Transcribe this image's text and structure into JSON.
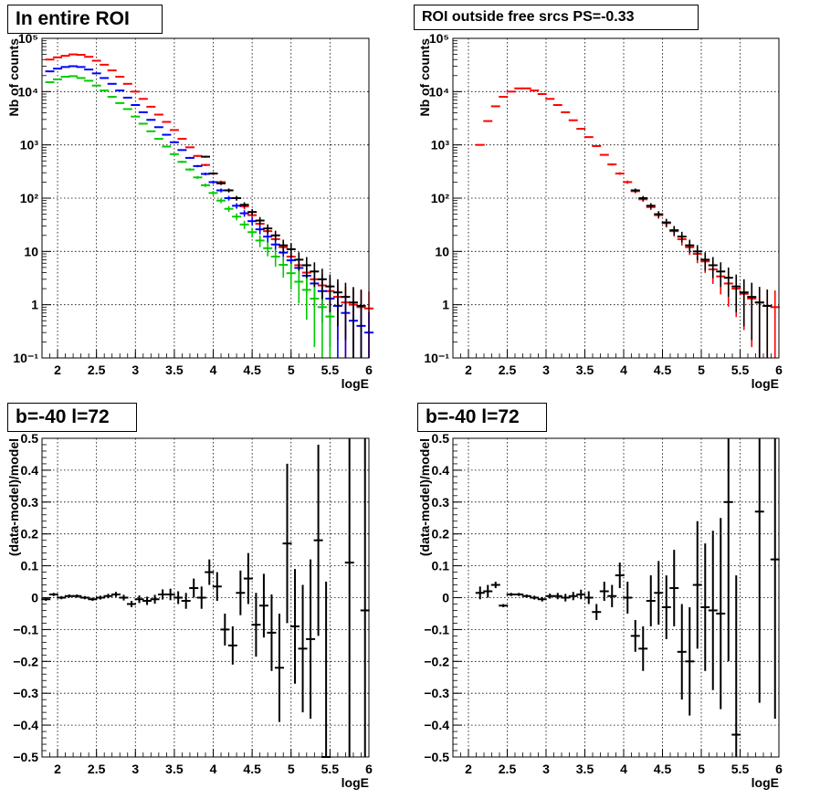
{
  "chart_data": [
    {
      "type": "scatter",
      "title": "In entire ROI",
      "xlabel": "logE",
      "ylabel": "Nb of counts",
      "xlim": [
        1.8,
        6.0
      ],
      "ylim": [
        0.1,
        100000
      ],
      "yscale": "log",
      "grid": true,
      "xticks": [
        "2",
        "2.5",
        "3",
        "3.5",
        "4",
        "4.5",
        "5",
        "5.5",
        "6"
      ],
      "yticks": [
        "10⁻¹",
        "1",
        "10",
        "10²",
        "10³",
        "10⁴",
        "10⁵"
      ],
      "series": [
        {
          "color": "#ff0000",
          "x": [
            1.9,
            2.0,
            2.1,
            2.2,
            2.3,
            2.4,
            2.5,
            2.6,
            2.7,
            2.8,
            2.9,
            3.0,
            3.1,
            3.2,
            3.3,
            3.4,
            3.5,
            3.6,
            3.7,
            3.8,
            3.9,
            4.0,
            4.1,
            4.2,
            4.3,
            4.4,
            4.5,
            4.6,
            4.7,
            4.8,
            4.9,
            5.0,
            5.1,
            5.2,
            5.3,
            5.4,
            5.5,
            5.6,
            5.7,
            5.8,
            5.9,
            6.0
          ],
          "values": [
            40000,
            44000,
            47000,
            50000,
            49000,
            45000,
            38000,
            32000,
            25000,
            19000,
            14000,
            10000,
            7300,
            5200,
            3700,
            2700,
            1900,
            1300,
            900,
            620,
            420,
            290,
            200,
            140,
            100,
            70,
            48,
            33,
            24,
            17,
            12,
            8,
            5.5,
            4,
            3,
            2.3,
            1.8,
            1.4,
            1.1,
            1.0,
            0.9,
            0.85
          ]
        },
        {
          "color": "#0000ff",
          "x": [
            1.9,
            2.0,
            2.1,
            2.2,
            2.3,
            2.4,
            2.5,
            2.6,
            2.7,
            2.8,
            2.9,
            3.0,
            3.1,
            3.2,
            3.3,
            3.4,
            3.5,
            3.6,
            3.7,
            3.8,
            3.9,
            4.0,
            4.1,
            4.2,
            4.3,
            4.4,
            4.5,
            4.6,
            4.7,
            4.8,
            4.9,
            5.0,
            5.1,
            5.2,
            5.3,
            5.4,
            5.5,
            5.6,
            5.7,
            5.8,
            5.9,
            6.0
          ],
          "values": [
            24000,
            27000,
            29000,
            30000,
            29000,
            26000,
            22000,
            18000,
            14000,
            10500,
            7700,
            5600,
            4100,
            2950,
            2150,
            1550,
            1120,
            800,
            570,
            400,
            285,
            200,
            140,
            100,
            72,
            52,
            37,
            26,
            19,
            13.5,
            9.5,
            6.8,
            4.9,
            3.5,
            2.5,
            1.8,
            1.3,
            0.95,
            0.7,
            0.5,
            0.4,
            0.3
          ]
        },
        {
          "color": "#00cc00",
          "x": [
            1.9,
            2.0,
            2.1,
            2.2,
            2.3,
            2.4,
            2.5,
            2.6,
            2.7,
            2.8,
            2.9,
            3.0,
            3.1,
            3.2,
            3.3,
            3.4,
            3.5,
            3.6,
            3.7,
            3.8,
            3.9,
            4.0,
            4.1,
            4.2,
            4.3,
            4.4,
            4.5,
            4.6,
            4.7,
            4.8,
            4.9,
            5.0,
            5.1,
            5.2,
            5.3,
            5.4,
            5.5
          ],
          "values": [
            15000,
            17000,
            19000,
            19500,
            18000,
            16000,
            13000,
            10500,
            8000,
            6100,
            4700,
            3400,
            2500,
            1800,
            1300,
            930,
            670,
            480,
            345,
            245,
            175,
            125,
            90,
            63,
            45,
            32,
            23,
            16,
            11.5,
            8,
            5.6,
            3.9,
            2.7,
            1.9,
            1.3,
            0.9,
            0.6
          ]
        },
        {
          "color": "#000000",
          "x": [
            3.9,
            4.0,
            4.1,
            4.2,
            4.3,
            4.4,
            4.5,
            4.6,
            4.7,
            4.8,
            4.9,
            5.0,
            5.1,
            5.2,
            5.3,
            5.4,
            5.5,
            5.6,
            5.7,
            5.8,
            5.9
          ],
          "values": [
            600,
            290,
            190,
            140,
            100,
            75,
            55,
            38,
            27,
            20,
            13,
            11,
            7,
            5.5,
            4.2,
            3,
            2.2,
            1.7,
            1.4,
            1.1,
            0.95
          ]
        }
      ]
    },
    {
      "type": "scatter",
      "title": "ROI outside free srcs PS=-0.33",
      "xlabel": "logE",
      "ylabel": "Nb of counts",
      "xlim": [
        1.8,
        6.0
      ],
      "ylim": [
        0.1,
        100000
      ],
      "yscale": "log",
      "grid": true,
      "xticks": [
        "2",
        "2.5",
        "3",
        "3.5",
        "4",
        "4.5",
        "5",
        "5.5",
        "6"
      ],
      "yticks": [
        "10⁻¹",
        "1",
        "10",
        "10²",
        "10³",
        "10⁴",
        "10⁵"
      ],
      "series": [
        {
          "color": "#ff0000",
          "x": [
            2.15,
            2.25,
            2.35,
            2.45,
            2.55,
            2.65,
            2.75,
            2.85,
            2.95,
            3.05,
            3.15,
            3.25,
            3.35,
            3.45,
            3.55,
            3.65,
            3.75,
            3.85,
            3.95,
            4.05,
            4.15,
            4.25,
            4.35,
            4.45,
            4.55,
            4.65,
            4.75,
            4.85,
            4.95,
            5.05,
            5.15,
            5.25,
            5.35,
            5.45,
            5.55,
            5.65,
            5.75,
            5.85,
            5.95
          ],
          "values": [
            1000,
            2800,
            5300,
            8000,
            10000,
            11500,
            11500,
            10500,
            9000,
            7300,
            5600,
            4100,
            2900,
            2000,
            1400,
            950,
            650,
            430,
            290,
            200,
            135,
            95,
            68,
            48,
            34,
            24,
            17,
            12,
            9,
            6.5,
            4.6,
            3.4,
            2.5,
            2.0,
            1.6,
            1.3,
            1.1,
            0.95,
            0.9
          ]
        },
        {
          "color": "#000000",
          "x": [
            4.15,
            4.25,
            4.35,
            4.45,
            4.55,
            4.65,
            4.75,
            4.85,
            4.95,
            5.05,
            5.15,
            5.25,
            5.35,
            5.45,
            5.55,
            5.65,
            5.75,
            5.85
          ],
          "values": [
            140,
            100,
            72,
            50,
            35,
            25,
            19,
            13,
            10,
            7,
            5.5,
            4.2,
            3.2,
            2.2,
            1.7,
            1.4,
            1.1,
            0.95
          ]
        }
      ]
    },
    {
      "type": "scatter",
      "title": "b=-40 l=72",
      "xlabel": "logE",
      "ylabel": "(data-model)/model",
      "xlim": [
        1.8,
        6.0
      ],
      "ylim": [
        -0.5,
        0.5
      ],
      "grid": true,
      "xticks": [
        "2",
        "2.5",
        "3",
        "3.5",
        "4",
        "4.5",
        "5",
        "5.5",
        "6"
      ],
      "yticks": [
        "-0.5",
        "-0.4",
        "-0.3",
        "-0.2",
        "-0.1",
        "0",
        "0.1",
        "0.2",
        "0.3",
        "0.4",
        "0.5"
      ],
      "series": [
        {
          "color": "#000000",
          "x": [
            1.85,
            1.95,
            2.05,
            2.15,
            2.25,
            2.35,
            2.45,
            2.55,
            2.65,
            2.75,
            2.85,
            2.95,
            3.05,
            3.15,
            3.25,
            3.35,
            3.45,
            3.55,
            3.65,
            3.75,
            3.85,
            3.95,
            4.05,
            4.15,
            4.25,
            4.35,
            4.45,
            4.55,
            4.65,
            4.75,
            4.85,
            4.95,
            5.05,
            5.15,
            5.25,
            5.35,
            5.45,
            5.75,
            5.95
          ],
          "values": [
            -0.005,
            0.01,
            0.0,
            0.005,
            0.005,
            0.0,
            -0.005,
            0.0,
            0.005,
            0.01,
            0.0,
            -0.02,
            -0.005,
            -0.01,
            -0.005,
            0.01,
            0.01,
            0.0,
            -0.01,
            0.03,
            0.0,
            0.08,
            0.035,
            -0.1,
            -0.15,
            0.015,
            0.06,
            -0.085,
            -0.025,
            -0.11,
            -0.22,
            0.17,
            -0.09,
            -0.16,
            -0.13,
            0.18,
            -0.5,
            0.11,
            -0.04
          ],
          "errors": [
            0.005,
            0.005,
            0.005,
            0.005,
            0.005,
            0.005,
            0.005,
            0.006,
            0.007,
            0.008,
            0.009,
            0.01,
            0.012,
            0.013,
            0.014,
            0.016,
            0.018,
            0.02,
            0.025,
            0.03,
            0.035,
            0.04,
            0.045,
            0.05,
            0.06,
            0.07,
            0.08,
            0.1,
            0.1,
            0.12,
            0.17,
            0.25,
            0.18,
            0.2,
            0.25,
            0.3,
            0.55,
            0.7,
            0.55
          ]
        }
      ]
    },
    {
      "type": "scatter",
      "title": "b=-40 l=72",
      "xlabel": "logE",
      "ylabel": "(data-model)/model",
      "xlim": [
        1.8,
        6.0
      ],
      "ylim": [
        -0.5,
        0.5
      ],
      "grid": true,
      "xticks": [
        "2",
        "2.5",
        "3",
        "3.5",
        "4",
        "4.5",
        "5",
        "5.5",
        "6"
      ],
      "yticks": [
        "-0.5",
        "-0.4",
        "-0.3",
        "-0.2",
        "-0.1",
        "0",
        "0.1",
        "0.2",
        "0.3",
        "0.4",
        "0.5"
      ],
      "series": [
        {
          "color": "#000000",
          "x": [
            2.15,
            2.25,
            2.35,
            2.45,
            2.55,
            2.65,
            2.75,
            2.85,
            2.95,
            3.05,
            3.15,
            3.25,
            3.35,
            3.45,
            3.55,
            3.65,
            3.75,
            3.85,
            3.95,
            4.05,
            4.15,
            4.25,
            4.35,
            4.45,
            4.55,
            4.65,
            4.75,
            4.85,
            4.95,
            5.05,
            5.15,
            5.25,
            5.35,
            5.45,
            5.75,
            5.95
          ],
          "values": [
            0.015,
            0.02,
            0.04,
            -0.025,
            0.01,
            0.01,
            0.005,
            0.0,
            -0.005,
            0.005,
            0.005,
            0.0,
            0.005,
            0.01,
            0.0,
            -0.045,
            0.02,
            0.005,
            0.07,
            0.0,
            -0.12,
            -0.16,
            -0.01,
            0.015,
            -0.03,
            0.03,
            -0.17,
            -0.2,
            0.04,
            -0.03,
            -0.04,
            -0.05,
            0.3,
            -0.43,
            0.27,
            0.12
          ],
          "errors": [
            0.02,
            0.02,
            0.01,
            0.005,
            0.005,
            0.005,
            0.005,
            0.006,
            0.007,
            0.008,
            0.01,
            0.012,
            0.013,
            0.015,
            0.02,
            0.025,
            0.03,
            0.035,
            0.04,
            0.05,
            0.05,
            0.07,
            0.08,
            0.1,
            0.1,
            0.12,
            0.15,
            0.17,
            0.2,
            0.2,
            0.25,
            0.3,
            0.5,
            0.5,
            0.6,
            0.5
          ]
        }
      ]
    }
  ]
}
